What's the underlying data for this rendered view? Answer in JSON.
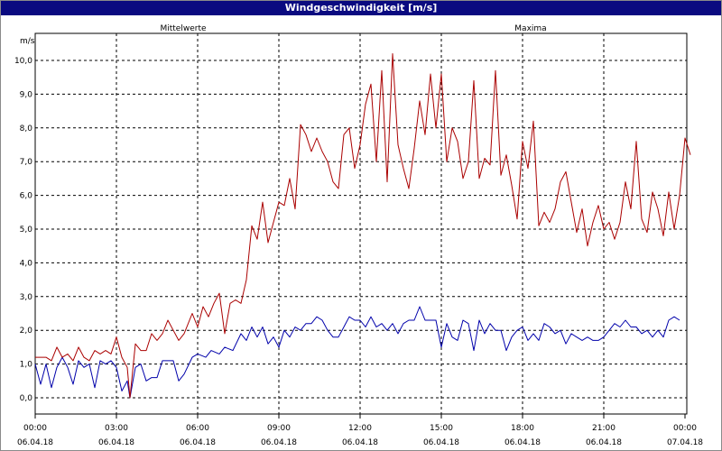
{
  "window": {
    "title": "Windgeschwindigkeit [m/s]"
  },
  "chart_data": {
    "type": "line",
    "title": "Windgeschwindigkeit [m/s]",
    "ylabel": "m/s",
    "xlabel": "",
    "ylim": [
      -0.5,
      11.0
    ],
    "xlim": [
      0,
      24
    ],
    "grid": true,
    "legend_placement": "top",
    "y_ticks": [
      "0,0",
      "1,0",
      "2,0",
      "3,0",
      "4,0",
      "5,0",
      "6,0",
      "7,0",
      "8,0",
      "9,0",
      "10,0"
    ],
    "x_ticks": [
      {
        "time": "00:00",
        "date": "06.04.18"
      },
      {
        "time": "03:00",
        "date": "06.04.18"
      },
      {
        "time": "06:00",
        "date": "06.04.18"
      },
      {
        "time": "09:00",
        "date": "06.04.18"
      },
      {
        "time": "12:00",
        "date": "06.04.18"
      },
      {
        "time": "15:00",
        "date": "06.04.18"
      },
      {
        "time": "18:00",
        "date": "06.04.18"
      },
      {
        "time": "21:00",
        "date": "06.04.18"
      },
      {
        "time": "00:00",
        "date": "07.04.18"
      }
    ],
    "series": [
      {
        "name": "Mittelwerte",
        "color": "#0000aa",
        "points": [
          [
            0,
            1.0
          ],
          [
            0.2,
            0.4
          ],
          [
            0.4,
            1.0
          ],
          [
            0.6,
            0.3
          ],
          [
            0.8,
            0.9
          ],
          [
            1.0,
            1.2
          ],
          [
            1.2,
            0.9
          ],
          [
            1.4,
            0.4
          ],
          [
            1.6,
            1.1
          ],
          [
            1.8,
            0.9
          ],
          [
            2.0,
            1.0
          ],
          [
            2.2,
            0.3
          ],
          [
            2.4,
            1.1
          ],
          [
            2.6,
            1.0
          ],
          [
            2.8,
            1.1
          ],
          [
            3.0,
            0.9
          ],
          [
            3.2,
            0.2
          ],
          [
            3.4,
            0.5
          ],
          [
            3.5,
            0.0
          ],
          [
            3.7,
            0.9
          ],
          [
            3.9,
            1.0
          ],
          [
            4.1,
            0.5
          ],
          [
            4.3,
            0.6
          ],
          [
            4.5,
            0.6
          ],
          [
            4.7,
            1.1
          ],
          [
            4.9,
            1.1
          ],
          [
            5.1,
            1.1
          ],
          [
            5.3,
            0.5
          ],
          [
            5.5,
            0.7
          ],
          [
            5.8,
            1.2
          ],
          [
            6.0,
            1.3
          ],
          [
            6.3,
            1.2
          ],
          [
            6.5,
            1.4
          ],
          [
            6.8,
            1.3
          ],
          [
            7.0,
            1.5
          ],
          [
            7.3,
            1.4
          ],
          [
            7.6,
            1.9
          ],
          [
            7.8,
            1.7
          ],
          [
            8.0,
            2.1
          ],
          [
            8.2,
            1.8
          ],
          [
            8.4,
            2.1
          ],
          [
            8.6,
            1.6
          ],
          [
            8.8,
            1.8
          ],
          [
            9.0,
            1.5
          ],
          [
            9.2,
            2.0
          ],
          [
            9.4,
            1.8
          ],
          [
            9.6,
            2.1
          ],
          [
            9.8,
            2.0
          ],
          [
            10.0,
            2.2
          ],
          [
            10.2,
            2.2
          ],
          [
            10.4,
            2.4
          ],
          [
            10.6,
            2.3
          ],
          [
            10.8,
            2.0
          ],
          [
            11.0,
            1.8
          ],
          [
            11.2,
            1.8
          ],
          [
            11.4,
            2.1
          ],
          [
            11.6,
            2.4
          ],
          [
            11.8,
            2.3
          ],
          [
            12.0,
            2.3
          ],
          [
            12.2,
            2.1
          ],
          [
            12.4,
            2.4
          ],
          [
            12.6,
            2.1
          ],
          [
            12.8,
            2.2
          ],
          [
            13.0,
            2.0
          ],
          [
            13.2,
            2.2
          ],
          [
            13.4,
            1.9
          ],
          [
            13.6,
            2.2
          ],
          [
            13.8,
            2.3
          ],
          [
            14.0,
            2.3
          ],
          [
            14.2,
            2.7
          ],
          [
            14.4,
            2.3
          ],
          [
            14.6,
            2.3
          ],
          [
            14.8,
            2.3
          ],
          [
            15.0,
            1.5
          ],
          [
            15.2,
            2.2
          ],
          [
            15.4,
            1.8
          ],
          [
            15.6,
            1.7
          ],
          [
            15.8,
            2.3
          ],
          [
            16.0,
            2.2
          ],
          [
            16.2,
            1.4
          ],
          [
            16.4,
            2.3
          ],
          [
            16.6,
            1.9
          ],
          [
            16.8,
            2.2
          ],
          [
            17.0,
            2.0
          ],
          [
            17.2,
            2.0
          ],
          [
            17.4,
            1.4
          ],
          [
            17.6,
            1.8
          ],
          [
            17.8,
            2.0
          ],
          [
            18.0,
            2.1
          ],
          [
            18.2,
            1.7
          ],
          [
            18.4,
            1.9
          ],
          [
            18.6,
            1.7
          ],
          [
            18.8,
            2.2
          ],
          [
            19.0,
            2.1
          ],
          [
            19.2,
            1.9
          ],
          [
            19.4,
            2.0
          ],
          [
            19.6,
            1.6
          ],
          [
            19.8,
            1.9
          ],
          [
            20.0,
            1.8
          ],
          [
            20.2,
            1.7
          ],
          [
            20.4,
            1.8
          ],
          [
            20.6,
            1.7
          ],
          [
            20.8,
            1.7
          ],
          [
            21.0,
            1.8
          ],
          [
            21.2,
            2.0
          ],
          [
            21.4,
            2.2
          ],
          [
            21.6,
            2.1
          ],
          [
            21.8,
            2.3
          ],
          [
            22.0,
            2.1
          ],
          [
            22.2,
            2.1
          ],
          [
            22.4,
            1.9
          ],
          [
            22.6,
            2.0
          ],
          [
            22.8,
            1.8
          ],
          [
            23.0,
            2.0
          ],
          [
            23.2,
            1.8
          ],
          [
            23.4,
            2.3
          ],
          [
            23.6,
            2.4
          ],
          [
            23.8,
            2.3
          ]
        ]
      },
      {
        "name": "Maxima",
        "color": "#aa0000",
        "points": [
          [
            0,
            1.2
          ],
          [
            0.2,
            1.2
          ],
          [
            0.4,
            1.2
          ],
          [
            0.6,
            1.1
          ],
          [
            0.8,
            1.5
          ],
          [
            1.0,
            1.2
          ],
          [
            1.2,
            1.3
          ],
          [
            1.4,
            1.1
          ],
          [
            1.6,
            1.5
          ],
          [
            1.8,
            1.2
          ],
          [
            2.0,
            1.1
          ],
          [
            2.2,
            1.4
          ],
          [
            2.4,
            1.3
          ],
          [
            2.6,
            1.4
          ],
          [
            2.8,
            1.3
          ],
          [
            3.0,
            1.8
          ],
          [
            3.2,
            1.2
          ],
          [
            3.4,
            0.9
          ],
          [
            3.5,
            0.0
          ],
          [
            3.7,
            1.6
          ],
          [
            3.9,
            1.4
          ],
          [
            4.1,
            1.4
          ],
          [
            4.3,
            1.9
          ],
          [
            4.5,
            1.7
          ],
          [
            4.7,
            1.9
          ],
          [
            4.9,
            2.3
          ],
          [
            5.1,
            2.0
          ],
          [
            5.3,
            1.7
          ],
          [
            5.5,
            1.9
          ],
          [
            5.8,
            2.5
          ],
          [
            6.0,
            2.1
          ],
          [
            6.2,
            2.7
          ],
          [
            6.4,
            2.4
          ],
          [
            6.6,
            2.8
          ],
          [
            6.8,
            3.1
          ],
          [
            7.0,
            1.9
          ],
          [
            7.2,
            2.8
          ],
          [
            7.4,
            2.9
          ],
          [
            7.6,
            2.8
          ],
          [
            7.8,
            3.5
          ],
          [
            8.0,
            5.1
          ],
          [
            8.2,
            4.7
          ],
          [
            8.4,
            5.8
          ],
          [
            8.6,
            4.6
          ],
          [
            8.8,
            5.2
          ],
          [
            9.0,
            5.8
          ],
          [
            9.2,
            5.7
          ],
          [
            9.4,
            6.5
          ],
          [
            9.6,
            5.6
          ],
          [
            9.8,
            8.1
          ],
          [
            10.0,
            7.8
          ],
          [
            10.2,
            7.3
          ],
          [
            10.4,
            7.7
          ],
          [
            10.6,
            7.3
          ],
          [
            10.8,
            7.0
          ],
          [
            11.0,
            6.4
          ],
          [
            11.2,
            6.2
          ],
          [
            11.4,
            7.8
          ],
          [
            11.6,
            8.0
          ],
          [
            11.8,
            6.8
          ],
          [
            12.0,
            7.5
          ],
          [
            12.2,
            8.7
          ],
          [
            12.4,
            9.3
          ],
          [
            12.6,
            7.0
          ],
          [
            12.8,
            9.7
          ],
          [
            13.0,
            6.4
          ],
          [
            13.2,
            10.2
          ],
          [
            13.4,
            7.5
          ],
          [
            13.6,
            6.8
          ],
          [
            13.8,
            6.2
          ],
          [
            14.0,
            7.4
          ],
          [
            14.2,
            8.8
          ],
          [
            14.4,
            7.8
          ],
          [
            14.6,
            9.6
          ],
          [
            14.8,
            8.0
          ],
          [
            15.0,
            9.6
          ],
          [
            15.2,
            7.0
          ],
          [
            15.4,
            8.0
          ],
          [
            15.6,
            7.6
          ],
          [
            15.8,
            6.5
          ],
          [
            16.0,
            7.0
          ],
          [
            16.2,
            9.4
          ],
          [
            16.4,
            6.5
          ],
          [
            16.6,
            7.1
          ],
          [
            16.8,
            6.9
          ],
          [
            17.0,
            9.7
          ],
          [
            17.2,
            6.6
          ],
          [
            17.4,
            7.2
          ],
          [
            17.6,
            6.3
          ],
          [
            17.8,
            5.3
          ],
          [
            18.0,
            7.6
          ],
          [
            18.2,
            6.8
          ],
          [
            18.4,
            8.2
          ],
          [
            18.6,
            5.1
          ],
          [
            18.8,
            5.5
          ],
          [
            19.0,
            5.2
          ],
          [
            19.2,
            5.6
          ],
          [
            19.4,
            6.4
          ],
          [
            19.6,
            6.7
          ],
          [
            19.8,
            5.8
          ],
          [
            20.0,
            4.9
          ],
          [
            20.2,
            5.6
          ],
          [
            20.4,
            4.5
          ],
          [
            20.6,
            5.2
          ],
          [
            20.8,
            5.7
          ],
          [
            21.0,
            5.0
          ],
          [
            21.2,
            5.2
          ],
          [
            21.4,
            4.7
          ],
          [
            21.6,
            5.2
          ],
          [
            21.8,
            6.4
          ],
          [
            22.0,
            5.6
          ],
          [
            22.2,
            7.6
          ],
          [
            22.4,
            5.3
          ],
          [
            22.6,
            4.9
          ],
          [
            22.8,
            6.1
          ],
          [
            23.0,
            5.6
          ],
          [
            23.2,
            4.8
          ],
          [
            23.4,
            6.1
          ],
          [
            23.6,
            5.0
          ],
          [
            23.8,
            6.0
          ],
          [
            24.0,
            7.7
          ],
          [
            24.2,
            7.2
          ]
        ]
      }
    ]
  }
}
